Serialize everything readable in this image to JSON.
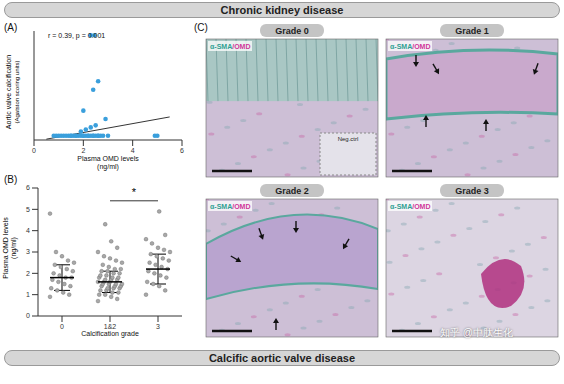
{
  "header": "Chronic kidney disease",
  "footer": "Calcific aortic valve disease",
  "watermark": "知乎 @中肽生化",
  "chart_data": [
    {
      "type": "scatter",
      "panel_label": "(A)",
      "xlabel": [
        "Plasma OMD levels",
        "(ng/ml)"
      ],
      "ylabel": [
        "Aortic valve calcification",
        "(Agatston scoring units)"
      ],
      "annotation": "r = 0.39, p = 0.001",
      "x": [
        0.8,
        0.9,
        1.0,
        1.1,
        1.2,
        1.3,
        1.4,
        1.5,
        1.6,
        1.7,
        1.8,
        1.9,
        2.0,
        2.1,
        2.2,
        2.3,
        2.4,
        2.5,
        2.6,
        2.7,
        2.8,
        3.0,
        1.5,
        1.7,
        2.0,
        2.2,
        2.4,
        2.6,
        1.9,
        2.1,
        2.3,
        2.5,
        2.3,
        2.45,
        2.6,
        2.9,
        2.4,
        4.9,
        5.0,
        2.0
      ],
      "y": [
        0,
        0,
        0,
        0,
        0,
        0,
        0,
        0,
        0,
        0,
        0,
        0,
        0,
        0,
        0,
        0,
        0,
        0,
        0,
        0,
        0,
        0,
        0,
        0,
        0,
        0,
        0,
        0,
        10,
        15,
        20,
        25,
        240,
        240,
        130,
        40,
        110,
        0,
        0,
        60
      ],
      "color": "#3a9fdc",
      "xlim": [
        0,
        6
      ],
      "xticks": [
        0,
        2,
        4,
        6
      ],
      "ylim": [
        -10,
        250
      ],
      "tick_labels": "x",
      "trend_line": {
        "x": [
          0.5,
          5.5
        ],
        "y": [
          -8,
          45
        ],
        "color": "#000000"
      }
    },
    {
      "type": "scatter",
      "panel_label": "(B)",
      "xlabel": "Calcification grade",
      "ylabel": [
        "Plasma OMD levels",
        "(ng/ml)"
      ],
      "categories": [
        "0",
        "1&2",
        "3"
      ],
      "groups": [
        {
          "values": [
            0.9,
            1.0,
            1.1,
            1.2,
            1.3,
            1.4,
            1.5,
            1.6,
            1.7,
            1.8,
            1.8,
            1.9,
            2.0,
            2.1,
            2.2,
            2.3,
            2.4,
            2.5,
            2.6,
            2.8,
            3.0,
            4.8
          ],
          "mean": 1.8,
          "sd": 0.6
        },
        {
          "values": [
            0.7,
            0.8,
            0.9,
            1.0,
            1.0,
            1.1,
            1.1,
            1.2,
            1.2,
            1.3,
            1.3,
            1.3,
            1.4,
            1.4,
            1.4,
            1.5,
            1.5,
            1.5,
            1.5,
            1.6,
            1.6,
            1.6,
            1.7,
            1.7,
            1.7,
            1.8,
            1.8,
            1.8,
            1.9,
            1.9,
            2.0,
            2.0,
            2.1,
            2.1,
            2.2,
            2.2,
            2.3,
            2.4,
            2.5,
            2.6,
            2.7,
            2.8,
            3.0,
            3.2,
            3.5,
            4.3
          ],
          "mean": 1.6,
          "sd": 0.5
        },
        {
          "values": [
            1.0,
            1.2,
            1.4,
            1.5,
            1.6,
            1.8,
            1.9,
            2.0,
            2.1,
            2.2,
            2.3,
            2.4,
            2.5,
            2.6,
            2.7,
            2.8,
            2.9,
            3.0,
            3.1,
            3.2,
            3.4,
            3.6,
            3.8,
            4.9
          ],
          "mean": 2.2,
          "sd": 0.7
        }
      ],
      "color": "#a8a8a8",
      "ylim": [
        0,
        6
      ],
      "yticks": [
        0,
        1,
        2,
        3,
        4,
        5,
        6
      ],
      "annotation": {
        "text": "*",
        "between": [
          "1&2",
          "3"
        ]
      }
    }
  ],
  "panel_c": {
    "panel_label": "(C)",
    "stain_label": [
      "α-SMA",
      "/OMD"
    ],
    "stain_colors": [
      "#2f9f93",
      "#d0359a"
    ],
    "images": [
      {
        "title": "Grade 0",
        "inset": "Neg.ctrl"
      },
      {
        "title": "Grade 1"
      },
      {
        "title": "Grade 2"
      },
      {
        "title": "Grade 3"
      }
    ]
  }
}
